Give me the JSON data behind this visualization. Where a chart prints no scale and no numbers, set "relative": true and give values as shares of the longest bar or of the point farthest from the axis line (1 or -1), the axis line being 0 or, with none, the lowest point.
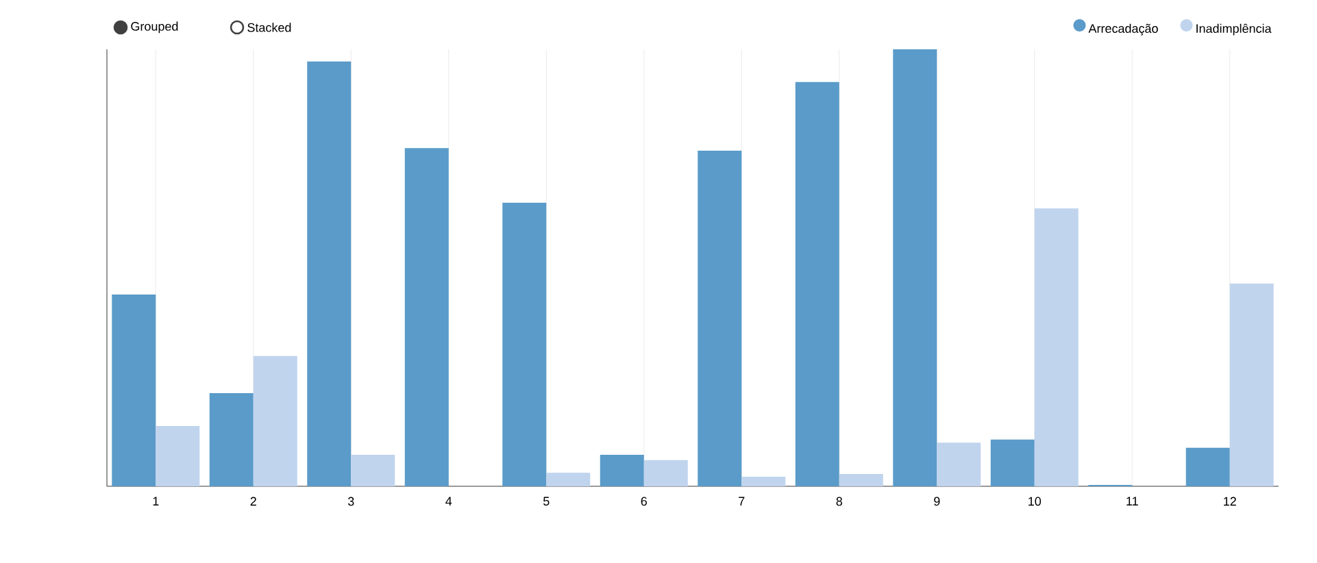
{
  "chart_data": {
    "type": "bar",
    "relative": true,
    "categories": [
      "1",
      "2",
      "3",
      "4",
      "5",
      "6",
      "7",
      "8",
      "9",
      "10",
      "11",
      "12"
    ],
    "series": [
      {
        "name": "Arrecadação",
        "color": "#5a9bc9",
        "values": [
          0.439,
          0.213,
          0.972,
          0.774,
          0.649,
          0.072,
          0.768,
          0.925,
          1,
          0.107,
          0.003,
          0.088
        ]
      },
      {
        "name": "Inadimplência",
        "color": "#c0d4ee",
        "values": [
          0.138,
          0.298,
          0.072,
          null,
          0.031,
          0.06,
          0.022,
          0.028,
          0.1,
          0.636,
          null,
          0.464
        ]
      }
    ],
    "annotations": [
      "Grouped",
      "Stacked"
    ],
    "grid": "x",
    "legend": "top right"
  }
}
